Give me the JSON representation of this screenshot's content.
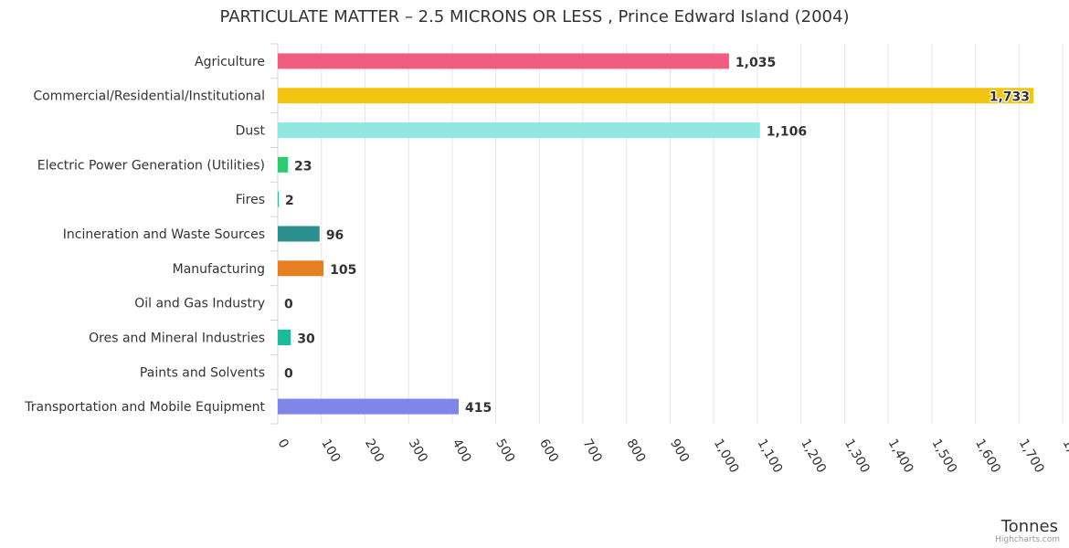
{
  "chart_data": {
    "type": "bar",
    "orientation": "horizontal",
    "title": "PARTICULATE MATTER – 2.5 MICRONS OR LESS , Prince Edward Island (2004)",
    "xlabel": "Tonnes",
    "ylabel": "",
    "xlim": [
      0,
      1800
    ],
    "tick_step": 100,
    "grid": true,
    "categories": [
      "Agriculture",
      "Commercial/Residential/Institutional",
      "Dust",
      "Electric Power Generation (Utilities)",
      "Fires",
      "Incineration and Waste Sources",
      "Manufacturing",
      "Oil and Gas Industry",
      "Ores and Mineral Industries",
      "Paints and Solvents",
      "Transportation and Mobile Equipment"
    ],
    "values": [
      1035,
      1733,
      1106,
      23,
      2,
      96,
      105,
      0,
      30,
      0,
      415
    ],
    "data_labels": [
      "1,035",
      "1,733",
      "1,106",
      "23",
      "2",
      "96",
      "105",
      "0",
      "30",
      "0",
      "415"
    ],
    "colors": [
      "#f15c80",
      "#f1c40f",
      "#91e8e1",
      "#2ecc71",
      "#1abc9c",
      "#2b908f",
      "#e67e22",
      "#90ed7d",
      "#1abc9c",
      "#f7a35c",
      "#8085e9"
    ]
  },
  "credits": "Highcharts.com"
}
